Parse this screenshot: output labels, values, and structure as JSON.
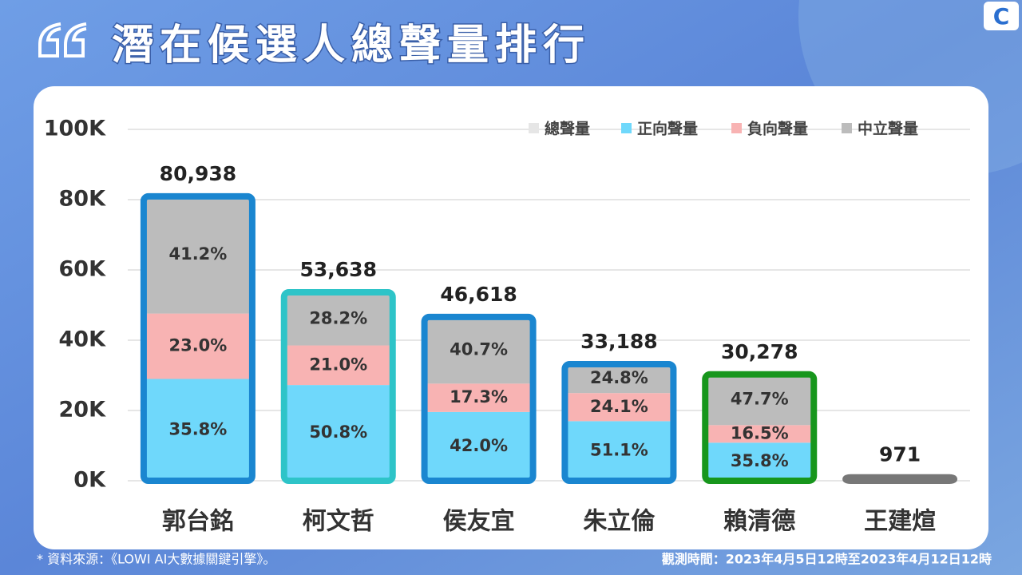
{
  "chart_data": {
    "type": "stacked-bar",
    "title": "潛在候選人總聲量排行",
    "source": "* 資料來源：《LOWI AI大數據關鍵引擎》。",
    "period": "觀測時間：2023年4月5日12時至2023年4月12日12時",
    "categories": [
      "郭台銘",
      "柯文哲",
      "侯友宜",
      "朱立倫",
      "賴清德",
      "王建煊"
    ],
    "totals": {
      "name": "總聲量",
      "color": "#e6e6e6",
      "values": [
        80938,
        53638,
        46618,
        33188,
        30278,
        971
      ],
      "value_labels": [
        "80,938",
        "53,638",
        "46,618",
        "33,188",
        "30,278",
        "971"
      ]
    },
    "outline_colors": [
      "#1a86d0",
      "#2ec4c8",
      "#1a86d0",
      "#1a86d0",
      "#17961c",
      "#777777"
    ],
    "series": [
      {
        "name": "正向聲量",
        "color": "#6fd8fb",
        "values": [
          35.8,
          50.8,
          42.0,
          51.1,
          35.8,
          null
        ],
        "value_labels": [
          "35.8%",
          "50.8%",
          "42.0%",
          "51.1%",
          "35.8%",
          null
        ]
      },
      {
        "name": "負向聲量",
        "color": "#f8b3b3",
        "values": [
          23.0,
          21.0,
          17.3,
          24.1,
          16.5,
          null
        ],
        "value_labels": [
          "23.0%",
          "21.0%",
          "17.3%",
          "24.1%",
          "16.5%",
          null
        ]
      },
      {
        "name": "中立聲量",
        "color": "#bcbcbc",
        "values": [
          41.2,
          28.2,
          40.7,
          24.8,
          47.7,
          null
        ],
        "value_labels": [
          "41.2%",
          "28.2%",
          "40.7%",
          "24.8%",
          "47.7%",
          null
        ]
      }
    ],
    "ylim": [
      0,
      100000
    ],
    "yticks": [
      {
        "value": 0,
        "label": "0K"
      },
      {
        "value": 20000,
        "label": "20K"
      },
      {
        "value": 40000,
        "label": "40K"
      },
      {
        "value": 60000,
        "label": "60K"
      },
      {
        "value": 80000,
        "label": "80K"
      },
      {
        "value": 100000,
        "label": "100K"
      }
    ],
    "grid": true
  }
}
